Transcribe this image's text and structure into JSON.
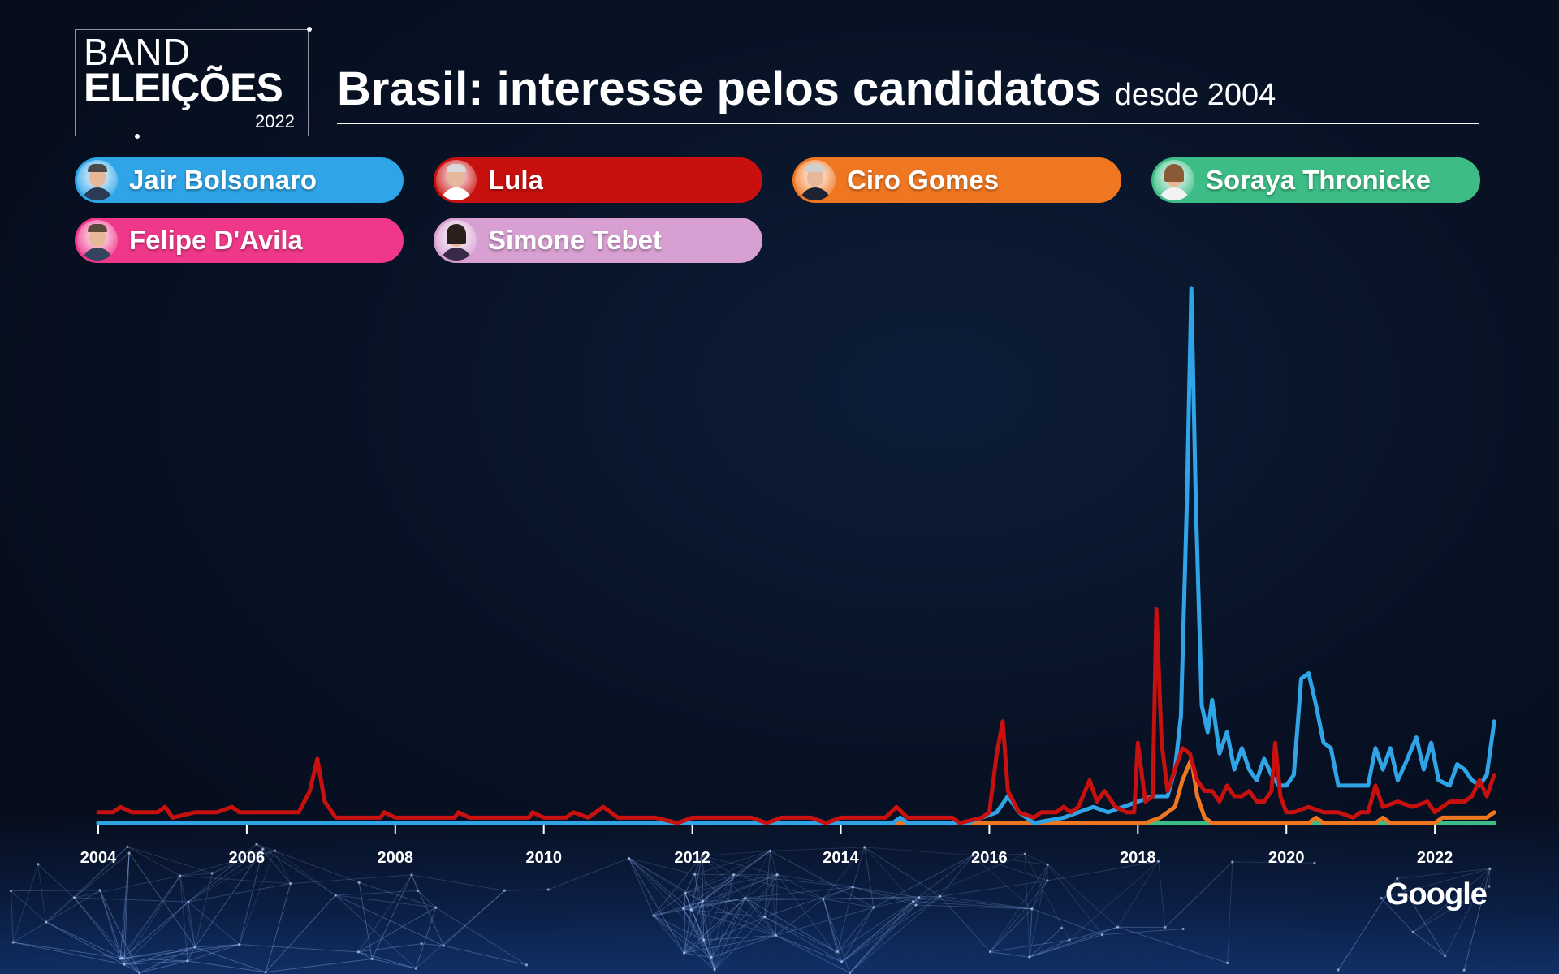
{
  "logo": {
    "line1": "BAND",
    "line2": "ELEIÇÕES",
    "year": "2022"
  },
  "header": {
    "title": "Brasil: interesse pelos candidatos",
    "subtitle": "desde 2004"
  },
  "legend": [
    {
      "label": "Jair Bolsonaro",
      "color": "#2fa4e7",
      "icon": "bolsonaro-portrait-icon"
    },
    {
      "label": "Lula",
      "color": "#c8100e",
      "icon": "lula-portrait-icon"
    },
    {
      "label": "Ciro Gomes",
      "color": "#f07722",
      "icon": "ciro-gomes-portrait-icon"
    },
    {
      "label": "Soraya Thronicke",
      "color": "#3dbd85",
      "icon": "soraya-thronicke-portrait-icon"
    },
    {
      "label": "Felipe D'Avila",
      "color": "#f0388a",
      "icon": "felipe-davila-portrait-icon"
    },
    {
      "label": "Simone Tebet",
      "color": "#d8a0d2",
      "icon": "simone-tebet-portrait-icon"
    }
  ],
  "footer": {
    "brand": "Google"
  },
  "chart_data": {
    "type": "line",
    "title": "Brasil: interesse pelos candidatos",
    "subtitle": "desde 2004",
    "xlabel": "",
    "ylabel": "",
    "xlim": [
      2004,
      2022.6
    ],
    "ylim": [
      0,
      100
    ],
    "x_ticks": [
      "2004",
      "2006",
      "2008",
      "2010",
      "2012",
      "2014",
      "2016",
      "2018",
      "2020",
      "2022"
    ],
    "grid": false,
    "legend_position": "top",
    "series": [
      {
        "name": "Jair Bolsonaro",
        "color": "#2fa4e7",
        "points": [
          [
            2004,
            0
          ],
          [
            2014.7,
            0
          ],
          [
            2014.8,
            1
          ],
          [
            2014.9,
            0
          ],
          [
            2015.7,
            0
          ],
          [
            2015.9,
            1
          ],
          [
            2016.1,
            2
          ],
          [
            2016.25,
            5
          ],
          [
            2016.4,
            2
          ],
          [
            2016.6,
            0
          ],
          [
            2017.0,
            1
          ],
          [
            2017.2,
            2
          ],
          [
            2017.4,
            3
          ],
          [
            2017.6,
            2
          ],
          [
            2017.8,
            3
          ],
          [
            2018.0,
            4
          ],
          [
            2018.2,
            5
          ],
          [
            2018.4,
            5
          ],
          [
            2018.5,
            10
          ],
          [
            2018.58,
            20
          ],
          [
            2018.66,
            60
          ],
          [
            2018.72,
            100
          ],
          [
            2018.78,
            60
          ],
          [
            2018.86,
            22
          ],
          [
            2018.94,
            17
          ],
          [
            2019.0,
            23
          ],
          [
            2019.1,
            13
          ],
          [
            2019.2,
            17
          ],
          [
            2019.3,
            10
          ],
          [
            2019.4,
            14
          ],
          [
            2019.5,
            10
          ],
          [
            2019.6,
            8
          ],
          [
            2019.7,
            12
          ],
          [
            2019.8,
            9
          ],
          [
            2019.9,
            7
          ],
          [
            2020.0,
            7
          ],
          [
            2020.1,
            9
          ],
          [
            2020.2,
            27
          ],
          [
            2020.3,
            28
          ],
          [
            2020.4,
            22
          ],
          [
            2020.5,
            15
          ],
          [
            2020.6,
            14
          ],
          [
            2020.7,
            7
          ],
          [
            2020.9,
            7
          ],
          [
            2021.0,
            7
          ],
          [
            2021.1,
            7
          ],
          [
            2021.2,
            14
          ],
          [
            2021.3,
            10
          ],
          [
            2021.4,
            14
          ],
          [
            2021.5,
            8
          ],
          [
            2021.6,
            11
          ],
          [
            2021.75,
            16
          ],
          [
            2021.85,
            10
          ],
          [
            2021.95,
            15
          ],
          [
            2022.05,
            8
          ],
          [
            2022.2,
            7
          ],
          [
            2022.3,
            11
          ],
          [
            2022.4,
            10
          ],
          [
            2022.5,
            8
          ],
          [
            2022.6,
            7
          ],
          [
            2022.7,
            9
          ],
          [
            2022.8,
            19
          ]
        ]
      },
      {
        "name": "Lula",
        "color": "#c8100e",
        "points": [
          [
            2004,
            2
          ],
          [
            2004.2,
            2
          ],
          [
            2004.3,
            3
          ],
          [
            2004.45,
            2
          ],
          [
            2004.8,
            2
          ],
          [
            2004.9,
            3
          ],
          [
            2005.0,
            1
          ],
          [
            2005.3,
            2
          ],
          [
            2005.6,
            2
          ],
          [
            2005.8,
            3
          ],
          [
            2005.9,
            2
          ],
          [
            2006.1,
            2
          ],
          [
            2006.3,
            2
          ],
          [
            2006.5,
            2
          ],
          [
            2006.7,
            2
          ],
          [
            2006.85,
            6
          ],
          [
            2006.95,
            12
          ],
          [
            2007.05,
            4
          ],
          [
            2007.2,
            1
          ],
          [
            2007.6,
            1
          ],
          [
            2007.8,
            1
          ],
          [
            2007.85,
            2
          ],
          [
            2008.0,
            1
          ],
          [
            2008.8,
            1
          ],
          [
            2008.85,
            2
          ],
          [
            2009.0,
            1
          ],
          [
            2009.8,
            1
          ],
          [
            2009.85,
            2
          ],
          [
            2010.0,
            1
          ],
          [
            2010.3,
            1
          ],
          [
            2010.4,
            2
          ],
          [
            2010.6,
            1
          ],
          [
            2010.7,
            2
          ],
          [
            2010.8,
            3
          ],
          [
            2011.0,
            1
          ],
          [
            2011.5,
            1
          ],
          [
            2011.8,
            0
          ],
          [
            2012.0,
            1
          ],
          [
            2012.8,
            1
          ],
          [
            2013.0,
            0
          ],
          [
            2013.2,
            1
          ],
          [
            2013.6,
            1
          ],
          [
            2013.8,
            0
          ],
          [
            2014.0,
            1
          ],
          [
            2014.6,
            1
          ],
          [
            2014.75,
            3
          ],
          [
            2014.9,
            1
          ],
          [
            2015.5,
            1
          ],
          [
            2015.6,
            0
          ],
          [
            2015.9,
            1
          ],
          [
            2016.0,
            2
          ],
          [
            2016.1,
            13
          ],
          [
            2016.18,
            19
          ],
          [
            2016.25,
            6
          ],
          [
            2016.4,
            2
          ],
          [
            2016.6,
            1
          ],
          [
            2016.7,
            2
          ],
          [
            2016.9,
            2
          ],
          [
            2017.0,
            3
          ],
          [
            2017.1,
            2
          ],
          [
            2017.2,
            3
          ],
          [
            2017.35,
            8
          ],
          [
            2017.45,
            4
          ],
          [
            2017.55,
            6
          ],
          [
            2017.7,
            3
          ],
          [
            2017.85,
            2
          ],
          [
            2017.95,
            2
          ],
          [
            2018.0,
            15
          ],
          [
            2018.1,
            4
          ],
          [
            2018.2,
            5
          ],
          [
            2018.25,
            40
          ],
          [
            2018.32,
            15
          ],
          [
            2018.4,
            6
          ],
          [
            2018.5,
            10
          ],
          [
            2018.6,
            14
          ],
          [
            2018.7,
            13
          ],
          [
            2018.8,
            8
          ],
          [
            2018.9,
            6
          ],
          [
            2019.0,
            6
          ],
          [
            2019.1,
            4
          ],
          [
            2019.2,
            7
          ],
          [
            2019.3,
            5
          ],
          [
            2019.4,
            5
          ],
          [
            2019.5,
            6
          ],
          [
            2019.6,
            4
          ],
          [
            2019.7,
            4
          ],
          [
            2019.8,
            6
          ],
          [
            2019.85,
            15
          ],
          [
            2019.92,
            5
          ],
          [
            2020.0,
            2
          ],
          [
            2020.1,
            2
          ],
          [
            2020.3,
            3
          ],
          [
            2020.5,
            2
          ],
          [
            2020.7,
            2
          ],
          [
            2020.9,
            1
          ],
          [
            2021.0,
            2
          ],
          [
            2021.1,
            2
          ],
          [
            2021.2,
            7
          ],
          [
            2021.3,
            3
          ],
          [
            2021.5,
            4
          ],
          [
            2021.7,
            3
          ],
          [
            2021.9,
            4
          ],
          [
            2022.0,
            2
          ],
          [
            2022.2,
            4
          ],
          [
            2022.4,
            4
          ],
          [
            2022.5,
            5
          ],
          [
            2022.6,
            8
          ],
          [
            2022.7,
            5
          ],
          [
            2022.8,
            9
          ]
        ]
      },
      {
        "name": "Ciro Gomes",
        "color": "#f07722",
        "points": [
          [
            2004,
            0
          ],
          [
            2017.9,
            0
          ],
          [
            2018.1,
            0
          ],
          [
            2018.3,
            1
          ],
          [
            2018.5,
            3
          ],
          [
            2018.6,
            8
          ],
          [
            2018.72,
            12
          ],
          [
            2018.8,
            5
          ],
          [
            2018.9,
            1
          ],
          [
            2019.0,
            0
          ],
          [
            2020.3,
            0
          ],
          [
            2020.4,
            1
          ],
          [
            2020.5,
            0
          ],
          [
            2021.2,
            0
          ],
          [
            2021.3,
            1
          ],
          [
            2021.4,
            0
          ],
          [
            2022.0,
            0
          ],
          [
            2022.1,
            1
          ],
          [
            2022.4,
            1
          ],
          [
            2022.7,
            1
          ],
          [
            2022.8,
            2
          ]
        ]
      },
      {
        "name": "Soraya Thronicke",
        "color": "#3dbd85",
        "points": [
          [
            2004,
            0
          ],
          [
            2022.8,
            0
          ]
        ]
      },
      {
        "name": "Felipe D'Avila",
        "color": "#f0388a",
        "points": [
          [
            2004,
            0
          ],
          [
            2022.8,
            0
          ]
        ]
      },
      {
        "name": "Simone Tebet",
        "color": "#d8a0d2",
        "points": [
          [
            2004,
            0
          ],
          [
            2022.8,
            0
          ]
        ]
      }
    ]
  }
}
